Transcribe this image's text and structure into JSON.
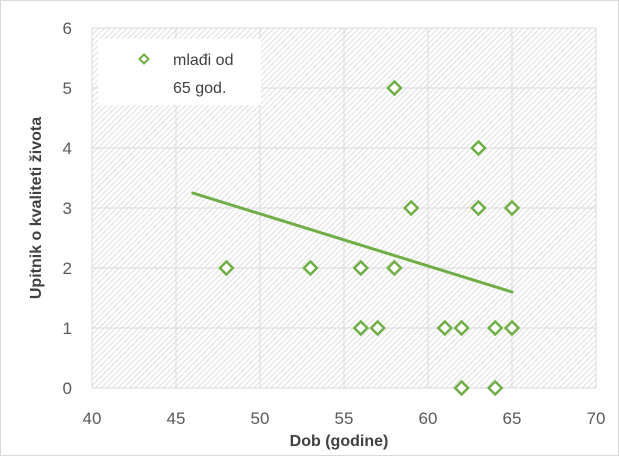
{
  "chart_data": {
    "type": "scatter",
    "title": "",
    "xlabel": "Dob (godine)",
    "ylabel": "Upitnik o kvaliteti života",
    "xlim": [
      40,
      70
    ],
    "ylim": [
      0,
      6
    ],
    "x_ticks": [
      "40",
      "45",
      "50",
      "55",
      "60",
      "65",
      "70"
    ],
    "y_ticks": [
      "0",
      "1",
      "2",
      "3",
      "4",
      "5",
      "6"
    ],
    "grid": true,
    "legend_position": "top-left",
    "colors": {
      "series": "#70ad47",
      "grid": "#d9d9d9",
      "axis_text": "#595959"
    },
    "series": [
      {
        "name": "mlađi od 65 god.",
        "legend_lines": [
          "mlađi od",
          "65 god."
        ],
        "marker": "diamond-open",
        "points": [
          {
            "x": 48,
            "y": 2
          },
          {
            "x": 53,
            "y": 2
          },
          {
            "x": 56,
            "y": 2
          },
          {
            "x": 58,
            "y": 2
          },
          {
            "x": 58,
            "y": 5
          },
          {
            "x": 59,
            "y": 3
          },
          {
            "x": 63,
            "y": 3
          },
          {
            "x": 65,
            "y": 3
          },
          {
            "x": 63,
            "y": 4
          },
          {
            "x": 56,
            "y": 1
          },
          {
            "x": 57,
            "y": 1
          },
          {
            "x": 61,
            "y": 1
          },
          {
            "x": 62,
            "y": 1
          },
          {
            "x": 64,
            "y": 1
          },
          {
            "x": 65,
            "y": 1
          },
          {
            "x": 62,
            "y": 0
          },
          {
            "x": 64,
            "y": 0
          }
        ]
      }
    ],
    "trendline": {
      "type": "linear",
      "x_start": 46,
      "y_start": 3.25,
      "x_end": 65,
      "y_end": 1.6
    }
  }
}
